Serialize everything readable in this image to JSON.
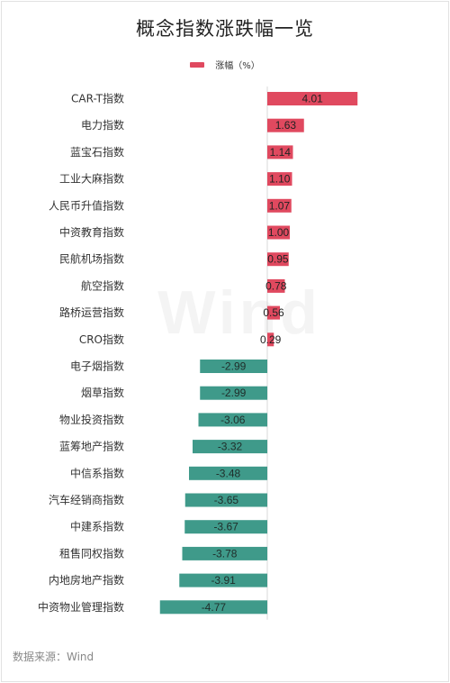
{
  "chart_data": {
    "type": "bar",
    "orientation": "horizontal",
    "title": "概念指数涨跌幅一览",
    "legend": {
      "label": "涨幅（%）",
      "position": "top"
    },
    "categories": [
      "CAR-T指数",
      "电力指数",
      "蓝宝石指数",
      "工业大麻指数",
      "人民币升值指数",
      "中资教育指数",
      "民航机场指数",
      "航空指数",
      "路桥运营指数",
      "CRO指数",
      "电子烟指数",
      "烟草指数",
      "物业投资指数",
      "蓝筹地产指数",
      "中信系指数",
      "汽车经销商指数",
      "中建系指数",
      "租售同权指数",
      "内地房地产指数",
      "中资物业管理指数"
    ],
    "series": [
      {
        "name": "涨幅（%）",
        "values": [
          4.01,
          1.63,
          1.14,
          1.1,
          1.07,
          1.0,
          0.95,
          0.78,
          0.56,
          0.29,
          -2.99,
          -2.99,
          -3.06,
          -3.32,
          -3.48,
          -3.65,
          -3.67,
          -3.78,
          -3.91,
          -4.77
        ],
        "data_labels": [
          "4.01",
          "1.63",
          "1.14",
          "1.10",
          "1.07",
          "1.00",
          "0.95",
          "0.78",
          "0.56",
          "0.29",
          "-2.99",
          "-2.99",
          "-3.06",
          "-3.32",
          "-3.48",
          "-3.65",
          "-3.67",
          "-3.78",
          "-3.91",
          "-4.77"
        ]
      }
    ],
    "xlim": [
      -4.77,
      4.01
    ],
    "colors": {
      "positive": "#e0495f",
      "negative": "#3f9a8a",
      "zero_line": "#d8d8d8"
    },
    "grid": false
  },
  "watermark": "Wind",
  "source": "数据来源：Wind"
}
